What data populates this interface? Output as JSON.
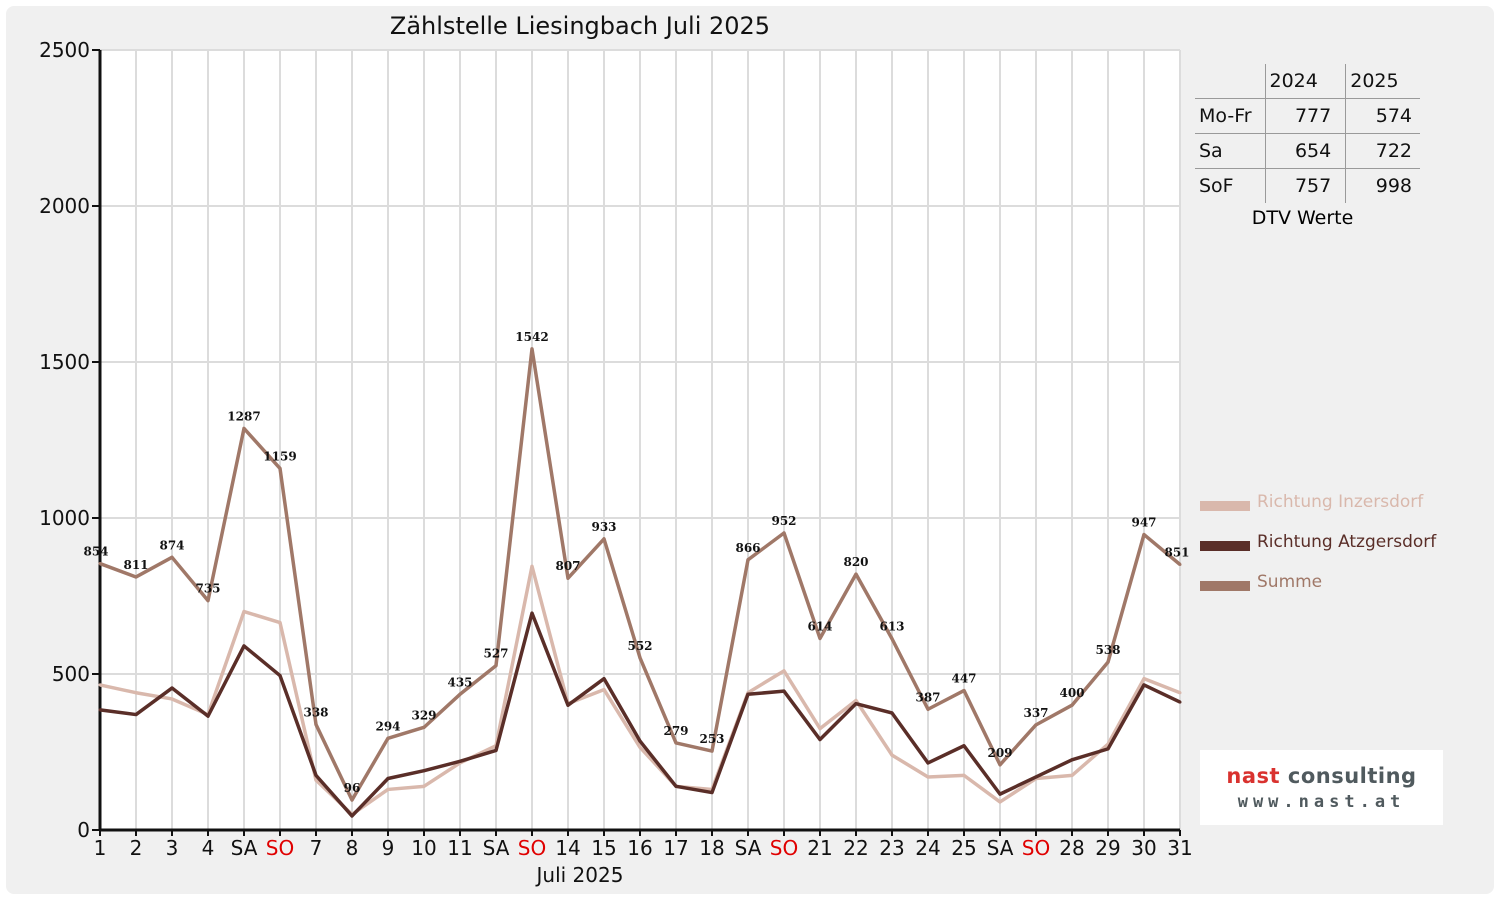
{
  "chart_data": {
    "type": "line",
    "title": "Zählstelle Liesingbach Juli 2025",
    "xlabel": "Juli 2025",
    "ylabel": "",
    "ylim": [
      0,
      2500
    ],
    "yticks": [
      0,
      500,
      1000,
      1500,
      2000,
      2500
    ],
    "grid": true,
    "legend_position": "right",
    "categories": [
      "1",
      "2",
      "3",
      "4",
      "SA",
      "SO",
      "7",
      "8",
      "9",
      "10",
      "11",
      "SA",
      "SO",
      "14",
      "15",
      "16",
      "17",
      "18",
      "SA",
      "SO",
      "21",
      "22",
      "23",
      "24",
      "25",
      "SA",
      "SO",
      "28",
      "29",
      "30",
      "31"
    ],
    "weekend_categories_red": [
      5,
      12,
      19,
      26
    ],
    "series": [
      {
        "name": "Richtung Inzersdorf",
        "color": "#d9b8ac",
        "values": [
          465,
          440,
          420,
          370,
          700,
          665,
          160,
          50,
          130,
          140,
          215,
          270,
          845,
          405,
          450,
          265,
          140,
          130,
          440,
          510,
          325,
          415,
          240,
          170,
          175,
          90,
          165,
          175,
          275,
          485,
          440
        ]
      },
      {
        "name": "Richtung Atzgersdorf",
        "color": "#5a2e28",
        "values": [
          385,
          370,
          455,
          365,
          590,
          495,
          175,
          45,
          165,
          190,
          220,
          255,
          695,
          400,
          485,
          285,
          140,
          120,
          435,
          445,
          290,
          405,
          375,
          215,
          270,
          115,
          170,
          225,
          260,
          465,
          410
        ]
      },
      {
        "name": "Summe",
        "color": "#a07868",
        "labels": true,
        "values": [
          854,
          811,
          874,
          735,
          1287,
          1159,
          338,
          96,
          294,
          329,
          435,
          527,
          1542,
          807,
          933,
          552,
          279,
          253,
          866,
          952,
          614,
          820,
          613,
          387,
          447,
          209,
          337,
          400,
          538,
          947,
          851
        ]
      }
    ]
  },
  "dtv_table": {
    "columns": [
      "2024",
      "2025"
    ],
    "rows": [
      {
        "label": "Mo-Fr",
        "v2024": "777",
        "v2025": "574"
      },
      {
        "label": "Sa",
        "v2024": "654",
        "v2025": "722"
      },
      {
        "label": "SoF",
        "v2024": "757",
        "v2025": "998"
      }
    ],
    "caption": "DTV Werte"
  },
  "logo": {
    "part1": "nast",
    "part2": "consulting",
    "url": "www.nast.at",
    "color_red": "#d9322f",
    "color_grey": "#505a5e"
  }
}
